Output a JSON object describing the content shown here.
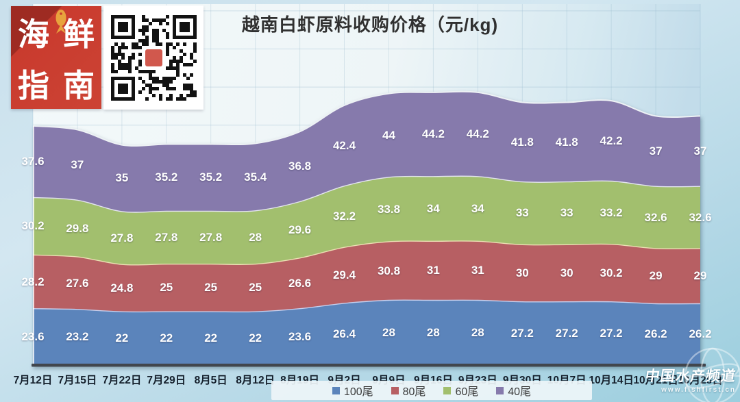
{
  "chart_data": {
    "type": "area",
    "stacked": true,
    "smooth": true,
    "title": "越南白虾原料收购价格（元/kg)",
    "unit": "元/kg",
    "xlabel": "",
    "ylabel": "",
    "ylim": [
      -6,
      183
    ],
    "grid": true,
    "data_labels": true,
    "legend_position": "bottom",
    "categories": [
      "7月12日",
      "7月15日",
      "7月22日",
      "7月29日",
      "8月5日",
      "8月12日",
      "8月19日",
      "9月2日",
      "9月9日",
      "9月16日",
      "9月23日",
      "9月30日",
      "10月7日",
      "10月14日",
      "10月21日",
      "10月28日"
    ],
    "series": [
      {
        "name": "100尾",
        "color": "#5b84bb",
        "values": [
          23.6,
          23.2,
          22,
          22,
          22,
          22,
          23.6,
          26.4,
          28,
          28,
          28,
          27.2,
          27.2,
          27.2,
          26.2,
          26.2
        ]
      },
      {
        "name": "80尾",
        "color": "#b75f63",
        "values": [
          28.2,
          27.6,
          24.8,
          25,
          25,
          25,
          26.6,
          29.4,
          30.8,
          31,
          31,
          30,
          30,
          30.2,
          29,
          29
        ]
      },
      {
        "name": "60尾",
        "color": "#a2bf6e",
        "values": [
          30.2,
          29.8,
          27.8,
          27.8,
          27.8,
          28,
          29.6,
          32.2,
          33.8,
          34,
          34,
          33,
          33,
          33.2,
          32.6,
          32.6
        ]
      },
      {
        "name": "40尾",
        "color": "#867aac",
        "values": [
          37.6,
          37,
          35,
          35.2,
          35.2,
          35.4,
          36.8,
          42.4,
          44,
          44.2,
          44.2,
          41.8,
          41.8,
          42.2,
          37,
          37
        ]
      }
    ]
  },
  "branding": {
    "logo_chars": [
      "海",
      "鲜",
      "指",
      "南"
    ],
    "logo_color": "#c93b2e",
    "fish_color": "#e8a33d"
  },
  "footer": {
    "brand": "中国水产频道",
    "url": "www.fishfirst.cn"
  },
  "style": {
    "boundary_colors": [
      "#c6cfed",
      "#ecdfb4",
      "#e3e4ef",
      "#eef2f5"
    ],
    "axis_color": "#41464d"
  }
}
